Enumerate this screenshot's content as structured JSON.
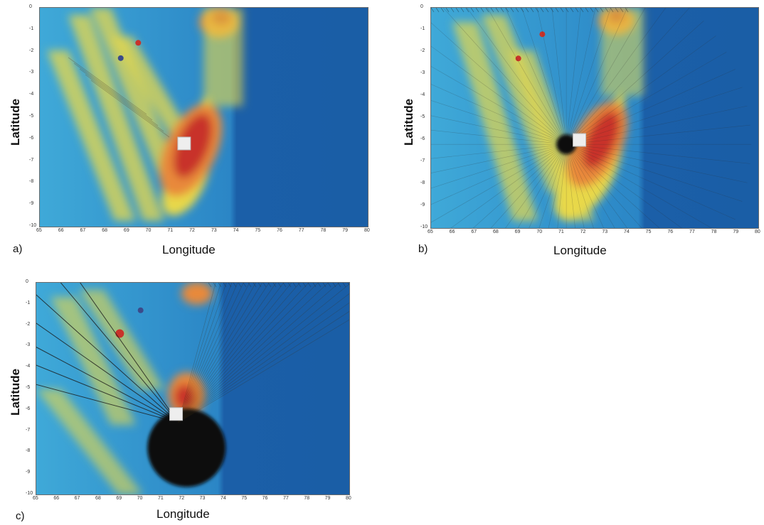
{
  "panels": [
    {
      "id": "a",
      "label": "a)",
      "xlabel": "Longitude",
      "ylabel": "Latitude"
    },
    {
      "id": "b",
      "label": "b)",
      "xlabel": "Longitude",
      "ylabel": "Latitude"
    },
    {
      "id": "c",
      "label": "c)",
      "xlabel": "Longitude",
      "ylabel": "Latitude"
    }
  ],
  "colors": {
    "deep_blue": "#1b5fa8",
    "mid_blue": "#2b86c6",
    "cyan": "#3fa9d8",
    "yellow": "#e8d84a",
    "orange": "#e8893a",
    "red": "#c8332a",
    "black": "#0a0a0a"
  },
  "chart_data": [
    {
      "type": "heatmap",
      "panel": "a",
      "xlim": [
        65,
        80
      ],
      "ylim": [
        -10,
        0
      ],
      "xticks": [
        "65",
        "66",
        "67",
        "68",
        "69",
        "70",
        "71",
        "72",
        "73",
        "74",
        "75",
        "76",
        "77",
        "78",
        "79",
        "80"
      ],
      "yticks": [
        "0",
        "-1",
        "-2",
        "-3",
        "-4",
        "-5",
        "-6",
        "-7",
        "-8",
        "-9",
        "-10"
      ],
      "xlabel": "Longitude",
      "ylabel": "Latitude",
      "colorbar": false
    },
    {
      "type": "heatmap",
      "panel": "b",
      "xlim": [
        65,
        80
      ],
      "ylim": [
        -10,
        0
      ],
      "xticks": [
        "65",
        "66",
        "67",
        "68",
        "69",
        "70",
        "71",
        "72",
        "73",
        "74",
        "75",
        "76",
        "77",
        "78",
        "79",
        "80"
      ],
      "yticks": [
        "0",
        "-1",
        "-2",
        "-3",
        "-4",
        "-5",
        "-6",
        "-7",
        "-8",
        "-9",
        "-10"
      ],
      "xlabel": "Longitude",
      "ylabel": "Latitude",
      "colorbar": false
    },
    {
      "type": "heatmap",
      "panel": "c",
      "xlim": [
        65,
        80
      ],
      "ylim": [
        -10,
        0
      ],
      "xticks": [
        "65",
        "66",
        "67",
        "68",
        "69",
        "70",
        "71",
        "72",
        "73",
        "74",
        "75",
        "76",
        "77",
        "78",
        "79",
        "80"
      ],
      "yticks": [
        "0",
        "-1",
        "-2",
        "-3",
        "-4",
        "-5",
        "-6",
        "-7",
        "-8",
        "-9",
        "-10"
      ],
      "xlabel": "Longitude",
      "ylabel": "Latitude",
      "colorbar": false
    }
  ]
}
